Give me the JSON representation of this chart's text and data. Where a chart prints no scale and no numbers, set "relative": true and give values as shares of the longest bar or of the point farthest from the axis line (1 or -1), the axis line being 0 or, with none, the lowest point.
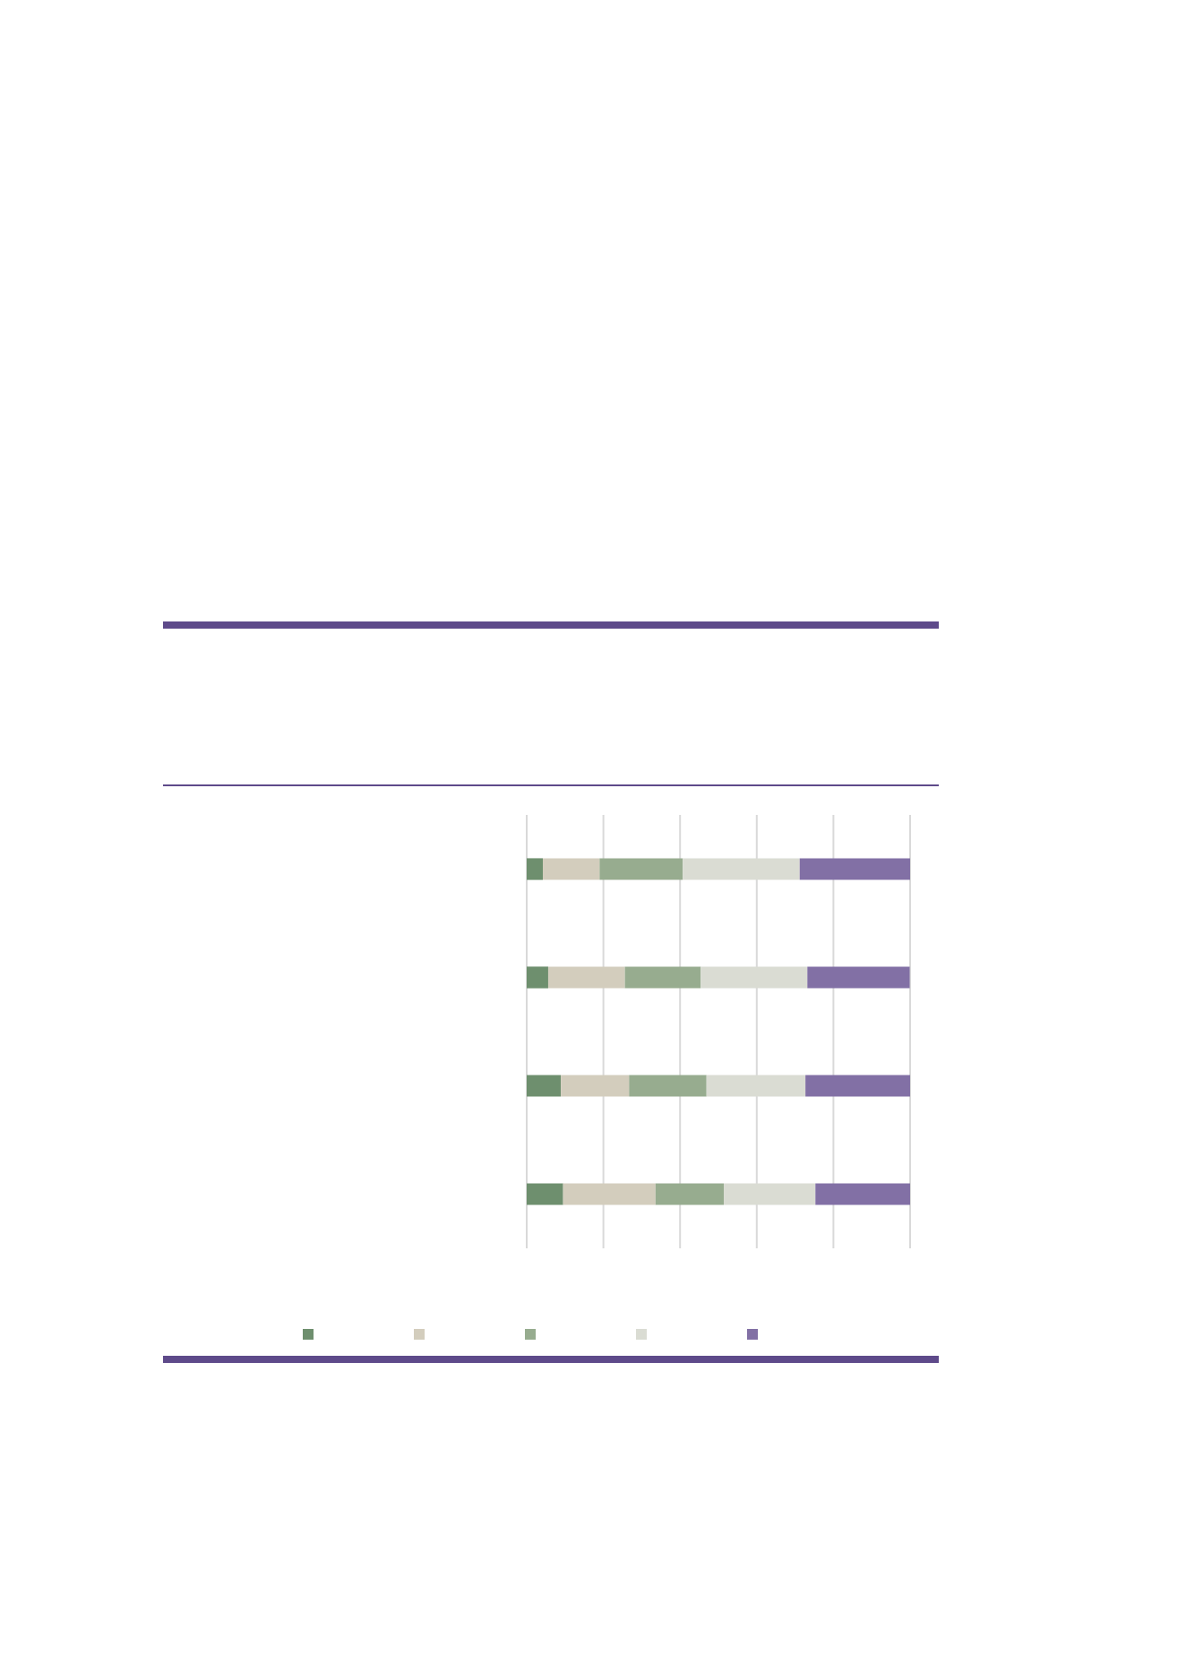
{
  "chart_data": {
    "type": "bar",
    "orientation": "horizontal",
    "stacked": true,
    "relative": true,
    "grid": "x",
    "categories": [
      null,
      null,
      null,
      null
    ],
    "series": [
      {
        "color": "#6e8f6e",
        "values": [
          0.042,
          0.056,
          0.089,
          0.095
        ]
      },
      {
        "color": "#d3cdbd",
        "values": [
          0.148,
          0.2,
          0.178,
          0.241
        ]
      },
      {
        "color": "#97ac8f",
        "values": [
          0.217,
          0.198,
          0.202,
          0.178
        ]
      },
      {
        "color": "#dadcd3",
        "values": [
          0.305,
          0.278,
          0.258,
          0.239
        ]
      },
      {
        "color": "#8270a5",
        "values": [
          0.288,
          0.267,
          0.273,
          0.247
        ]
      }
    ]
  }
}
